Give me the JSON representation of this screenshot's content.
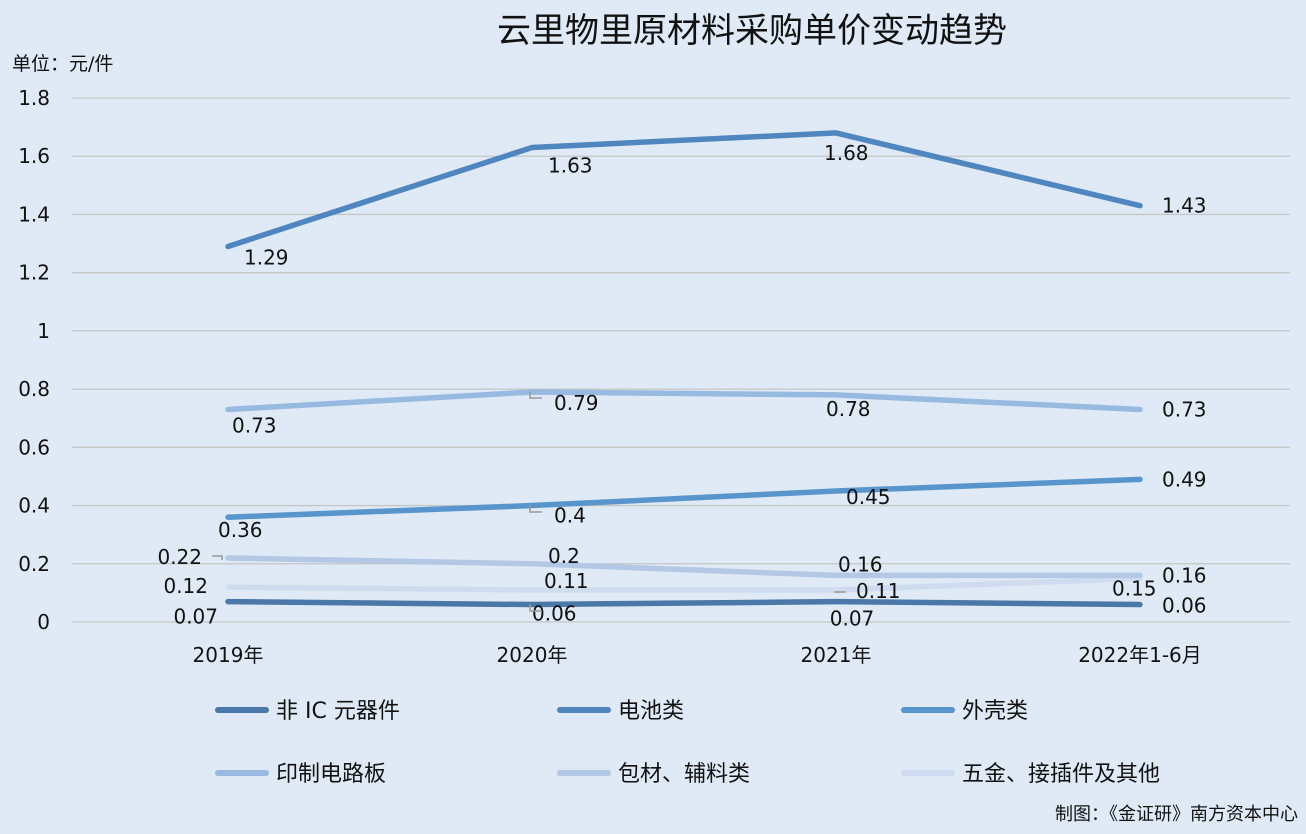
{
  "chart_data": {
    "type": "line",
    "title": "云里物里原材料采购单价变动趋势",
    "unit_label": "单位：元/件",
    "source": "制图：《金证研》南方资本中心",
    "categories": [
      "2019年",
      "2020年",
      "2021年",
      "2022年1-6月"
    ],
    "ylim": [
      0,
      1.8
    ],
    "yticks": [
      "0",
      "0.2",
      "0.4",
      "0.6",
      "0.8",
      "1",
      "1.2",
      "1.4",
      "1.6",
      "1.8"
    ],
    "grid": true,
    "legend_position": "bottom",
    "series": [
      {
        "name": "非 IC 元器件",
        "values": [
          0.07,
          0.06,
          0.07,
          0.06
        ],
        "labels": [
          "0.07",
          "0.06",
          "0.07",
          "0.06"
        ],
        "color": "#4a78a8"
      },
      {
        "name": "电池类",
        "values": [
          1.29,
          1.63,
          1.68,
          1.43
        ],
        "labels": [
          "1.29",
          "1.63",
          "1.68",
          "1.43"
        ],
        "color": "#4f86bf"
      },
      {
        "name": "外壳类",
        "values": [
          0.36,
          0.4,
          0.45,
          0.49
        ],
        "labels": [
          "0.36",
          "0.4",
          "0.45",
          "0.49"
        ],
        "color": "#5895cc"
      },
      {
        "name": "印制电路板",
        "values": [
          0.73,
          0.79,
          0.78,
          0.73
        ],
        "labels": [
          "0.73",
          "0.79",
          "0.78",
          "0.73"
        ],
        "color": "#98b9e0"
      },
      {
        "name": "包材、辅料类",
        "values": [
          0.22,
          0.2,
          0.16,
          0.16
        ],
        "labels": [
          "0.22",
          "0.2",
          "0.16",
          "0.16"
        ],
        "color": "#b3c8e4"
      },
      {
        "name": "五金、接插件及其他",
        "values": [
          0.12,
          0.11,
          0.11,
          0.15
        ],
        "labels": [
          "0.12",
          "0.11",
          "0.11",
          "0.15"
        ],
        "color": "#cfdcef"
      }
    ]
  }
}
